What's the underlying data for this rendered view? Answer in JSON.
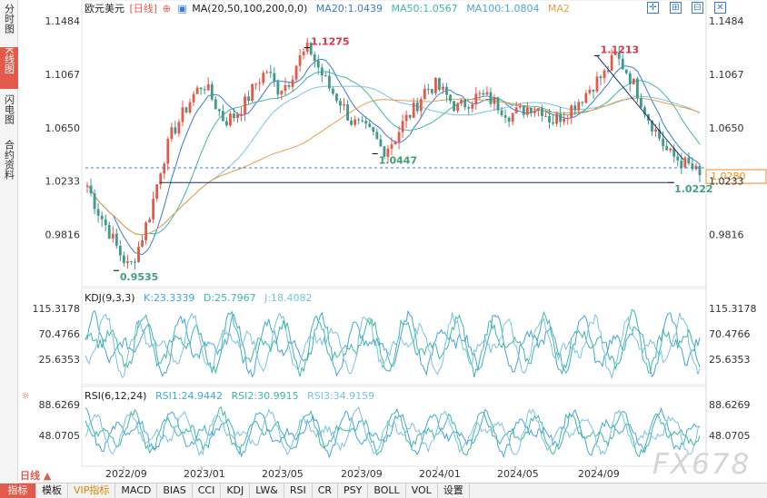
{
  "left_tabs": [
    "分时图",
    "K线图",
    "闪电图",
    "合约资料"
  ],
  "header": {
    "symbol": "欧元美元",
    "period": "[日线]",
    "ma_label": "MA(20,50,100,200,0,0)",
    "ma20": "MA20:1.0439",
    "ma50": "MA50:1.0567",
    "ma100": "MA100:1.0804",
    "ma2": "MA2"
  },
  "kdj_header": {
    "name": "KDJ(9,3,3)",
    "k": "K:23.3339",
    "d": "D:25.7967",
    "j": "J:18.4082"
  },
  "rsi_header": {
    "name": "RSI(6,12,24)",
    "r1": "RSI1:24.9442",
    "r2": "RSI2:30.9915",
    "r3": "RSI3:34.9159"
  },
  "period_selector": "日线 ▲",
  "watermark": "FX678",
  "bottom_tabs": [
    "指标",
    "模板",
    "VIP指标",
    "MACD",
    "BIAS",
    "CCI",
    "KDJ",
    "LW&",
    "RSI",
    "CR",
    "PSY",
    "BOLL",
    "VOL",
    "设置"
  ],
  "colors": {
    "up": "#e35a4a",
    "down": "#3f9a8c",
    "ma20": "#3a7bd5",
    "ma50": "#3fb8a0",
    "ma100": "#7ac3e0",
    "ma200": "#e3a04a",
    "kdj": "#45a6d8",
    "rsi": "#4ab0c8",
    "price_tag": "#f08a24",
    "label_high": "#e0304a",
    "label_low": "#3fa07a"
  },
  "chart_data": {
    "type": "candlestick",
    "symbol": "欧元美元",
    "price_ticks": [
      1.1484,
      1.1067,
      1.065,
      1.0233,
      0.9816
    ],
    "price_labels": [
      "1.1484",
      "1.1067",
      "1.0650",
      "1.0233",
      "0.9816"
    ],
    "ylim": [
      0.948,
      1.152
    ],
    "x_ticks": [
      "2022/09",
      "2023/01",
      "2023/05",
      "2023/09",
      "2024/01",
      "2024/05",
      "2024/09"
    ],
    "annotations": [
      {
        "label": "1.1275",
        "value": 1.1275,
        "kind": "high"
      },
      {
        "label": "1.1213",
        "value": 1.1213,
        "kind": "high"
      },
      {
        "label": "1.0447",
        "value": 1.0447,
        "kind": "low"
      },
      {
        "label": "0.9535",
        "value": 0.9535,
        "kind": "low"
      },
      {
        "label": "1.0222",
        "value": 1.0222,
        "kind": "low"
      }
    ],
    "current_price": "1.0280",
    "current_value": 1.028,
    "support_level": 1.0222,
    "close_path": [
      1.02,
      1.0,
      0.985,
      0.968,
      0.955,
      0.975,
      1.0,
      1.035,
      1.06,
      1.075,
      1.09,
      1.1,
      1.085,
      1.07,
      1.075,
      1.085,
      1.1,
      1.11,
      1.095,
      1.1,
      1.118,
      1.1275,
      1.11,
      1.095,
      1.085,
      1.07,
      1.065,
      1.06,
      1.047,
      1.055,
      1.07,
      1.08,
      1.095,
      1.098,
      1.09,
      1.08,
      1.085,
      1.09,
      1.088,
      1.082,
      1.075,
      1.078,
      1.082,
      1.08,
      1.07,
      1.075,
      1.082,
      1.09,
      1.1,
      1.107,
      1.1213,
      1.11,
      1.095,
      1.075,
      1.06,
      1.045,
      1.04,
      1.035,
      1.028
    ],
    "kdj_ticks": [
      "115.3178",
      "70.4766",
      "25.6353"
    ],
    "kdj_tick_values": [
      115.3178,
      70.4766,
      25.6353
    ],
    "rsi_ticks": [
      "88.6269",
      "48.0705"
    ],
    "rsi_tick_values": [
      88.6269,
      48.0705
    ]
  }
}
